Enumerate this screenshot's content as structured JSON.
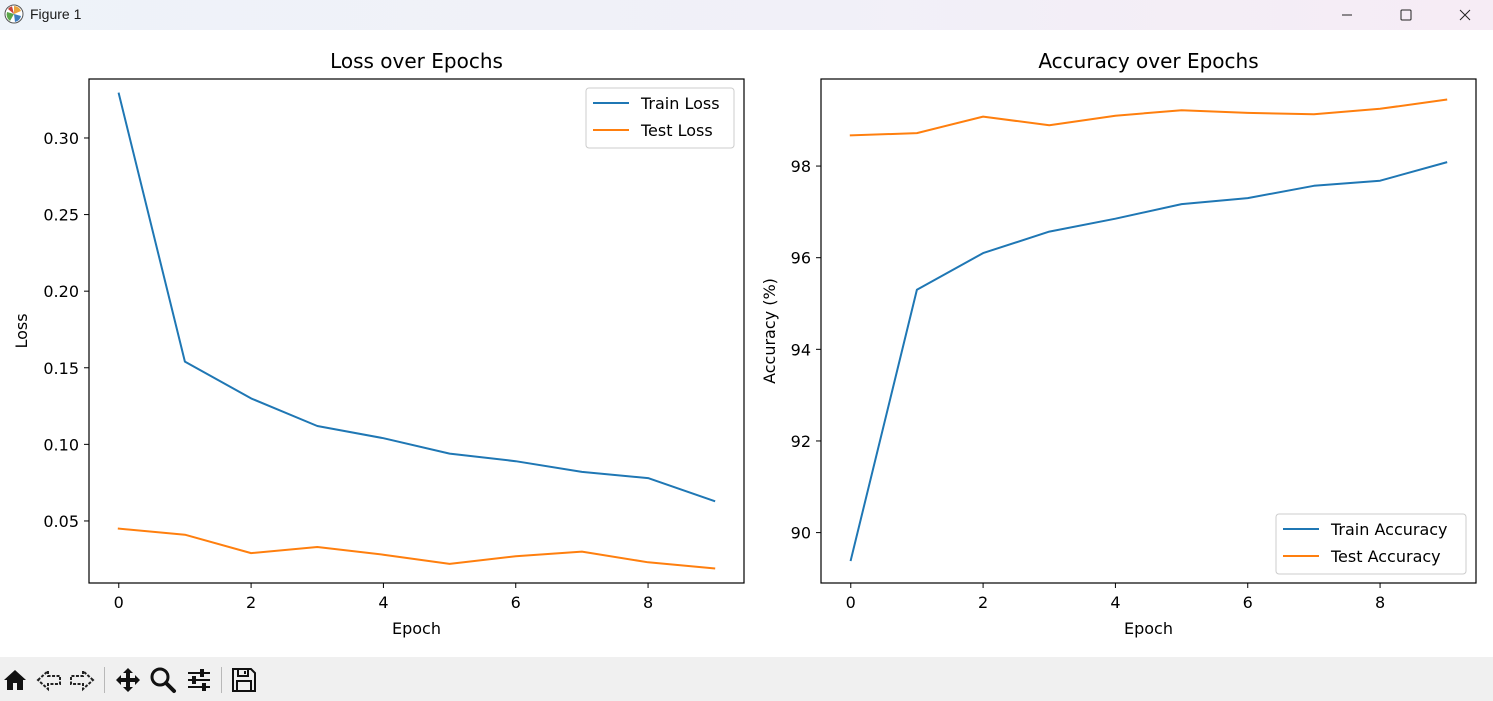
{
  "window": {
    "title": "Figure 1",
    "icons": {
      "app": "matplotlib-logo-icon",
      "minimize": "minimize-icon",
      "maximize": "maximize-icon",
      "close": "close-icon"
    }
  },
  "toolbar": {
    "buttons": [
      {
        "name": "home-button",
        "icon": "home-icon"
      },
      {
        "name": "back-button",
        "icon": "back-arrow-icon"
      },
      {
        "name": "forward-button",
        "icon": "forward-arrow-icon"
      },
      {
        "name": "pan-button",
        "icon": "pan-move-icon"
      },
      {
        "name": "zoom-button",
        "icon": "zoom-magnifier-icon"
      },
      {
        "name": "configure-subplots-button",
        "icon": "sliders-icon"
      },
      {
        "name": "save-button",
        "icon": "floppy-disk-icon"
      }
    ]
  },
  "colors": {
    "train": "#1f77b4",
    "test": "#ff7f0e"
  },
  "chart_data": [
    {
      "type": "line",
      "title": "Loss over Epochs",
      "xlabel": "Epoch",
      "ylabel": "Loss",
      "x": [
        0,
        1,
        2,
        3,
        4,
        5,
        6,
        7,
        8,
        9
      ],
      "xlim": [
        -0.45,
        9.45
      ],
      "ylim": [
        0.0095,
        0.3385
      ],
      "xticks": [
        "0",
        "2",
        "4",
        "6",
        "8"
      ],
      "yticks": [
        "0.05",
        "0.10",
        "0.15",
        "0.20",
        "0.25",
        "0.30"
      ],
      "grid": false,
      "legend": "upper right",
      "series": [
        {
          "name": "Train Loss",
          "color": "#1f77b4",
          "values": [
            0.329,
            0.154,
            0.13,
            0.112,
            0.104,
            0.094,
            0.089,
            0.082,
            0.078,
            0.063
          ]
        },
        {
          "name": "Test Loss",
          "color": "#ff7f0e",
          "values": [
            0.045,
            0.041,
            0.029,
            0.033,
            0.028,
            0.022,
            0.027,
            0.03,
            0.023,
            0.019
          ]
        }
      ]
    },
    {
      "type": "line",
      "title": "Accuracy over Epochs",
      "xlabel": "Epoch",
      "ylabel": "Accuracy (%)",
      "x": [
        0,
        1,
        2,
        3,
        4,
        5,
        6,
        7,
        8,
        9
      ],
      "xlim": [
        -0.45,
        9.45
      ],
      "ylim": [
        88.9,
        99.9
      ],
      "xticks": [
        "0",
        "2",
        "4",
        "6",
        "8"
      ],
      "yticks": [
        "90",
        "92",
        "94",
        "96",
        "98"
      ],
      "grid": false,
      "legend": "lower right",
      "series": [
        {
          "name": "Train Accuracy",
          "color": "#1f77b4",
          "values": [
            89.4,
            95.3,
            96.1,
            96.57,
            96.85,
            97.17,
            97.3,
            97.57,
            97.68,
            98.08
          ]
        },
        {
          "name": "Test Accuracy",
          "color": "#ff7f0e",
          "values": [
            98.67,
            98.72,
            99.08,
            98.89,
            99.1,
            99.22,
            99.16,
            99.13,
            99.25,
            99.45
          ]
        }
      ]
    }
  ]
}
